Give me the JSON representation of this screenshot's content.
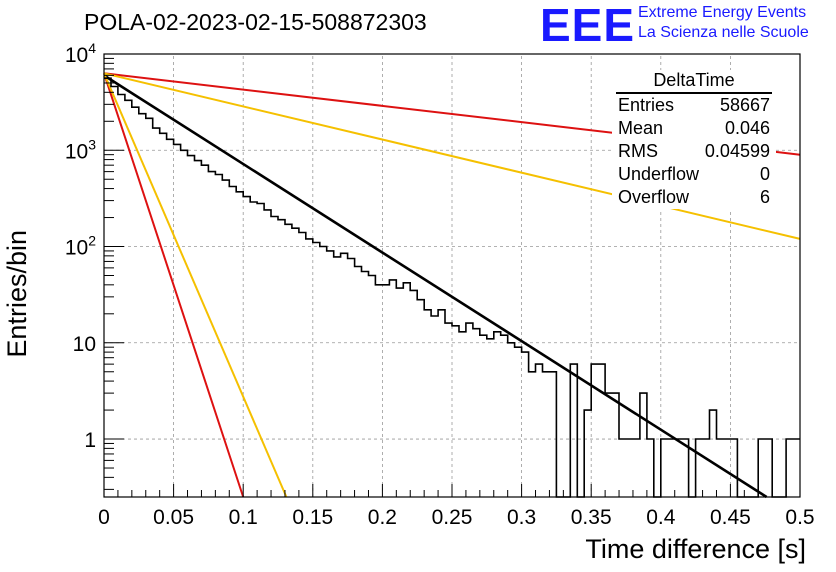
{
  "title": "POLA-02-2023-02-15-508872303",
  "logo": {
    "mark": "EEE",
    "line1": "Extreme Energy Events",
    "line2": "La Scienza nelle Scuole",
    "color": "#1a1aff"
  },
  "stats_box": {
    "name": "DeltaTime",
    "rows": [
      {
        "label": "Entries",
        "value": "58667"
      },
      {
        "label": "Mean",
        "value": "0.046"
      },
      {
        "label": "RMS",
        "value": "0.04599"
      },
      {
        "label": "Underflow",
        "value": "0"
      },
      {
        "label": "Overflow",
        "value": "6"
      }
    ]
  },
  "chart_data": {
    "type": "line",
    "xlabel": "Time difference [s]",
    "ylabel": "Entries/bin",
    "xlim": [
      0,
      0.5
    ],
    "ylim": [
      0.25,
      10000
    ],
    "yscale": "log",
    "grid": true,
    "x_ticks": [
      "0",
      "0.05",
      "0.1",
      "0.15",
      "0.2",
      "0.25",
      "0.3",
      "0.35",
      "0.4",
      "0.45",
      "0.5"
    ],
    "y_ticks": [
      "1",
      "10",
      "10^2",
      "10^3",
      "10^4"
    ],
    "histogram": {
      "name": "DeltaTime",
      "bin_width": 0.005,
      "color": "#000000",
      "bin_counts": [
        5600,
        4600,
        3800,
        3300,
        2800,
        2400,
        2150,
        1700,
        1500,
        1300,
        1150,
        1000,
        880,
        780,
        700,
        600,
        560,
        490,
        420,
        370,
        330,
        290,
        280,
        240,
        205,
        190,
        170,
        155,
        140,
        120,
        110,
        100,
        90,
        78,
        85,
        75,
        62,
        55,
        50,
        40,
        40,
        45,
        37,
        42,
        35,
        28,
        22,
        19,
        22,
        16,
        15,
        13,
        16,
        14,
        12,
        11,
        13,
        12,
        10,
        9,
        8,
        5,
        6,
        5,
        5,
        0,
        0,
        6,
        0,
        2,
        6,
        6,
        3,
        3,
        1,
        1,
        1,
        3,
        1,
        0,
        1,
        1,
        1,
        1,
        0,
        1,
        1,
        2,
        1,
        1,
        1,
        0,
        0,
        0,
        1,
        1,
        0,
        0,
        1,
        1
      ]
    },
    "series": [
      {
        "color": "#000000",
        "points": [
          [
            0,
            6000
          ],
          [
            0.476,
            0.25
          ]
        ]
      },
      {
        "color": "#dd1111",
        "points": [
          [
            0,
            6300
          ],
          [
            0.5,
            900
          ]
        ]
      },
      {
        "color": "#f5c000",
        "points": [
          [
            0,
            6300
          ],
          [
            0.5,
            120
          ]
        ]
      },
      {
        "color": "#dd1111",
        "points": [
          [
            0,
            6300
          ],
          [
            0.1,
            0.25
          ]
        ]
      },
      {
        "color": "#f5c000",
        "points": [
          [
            0,
            6300
          ],
          [
            0.131,
            0.25
          ]
        ]
      }
    ]
  }
}
